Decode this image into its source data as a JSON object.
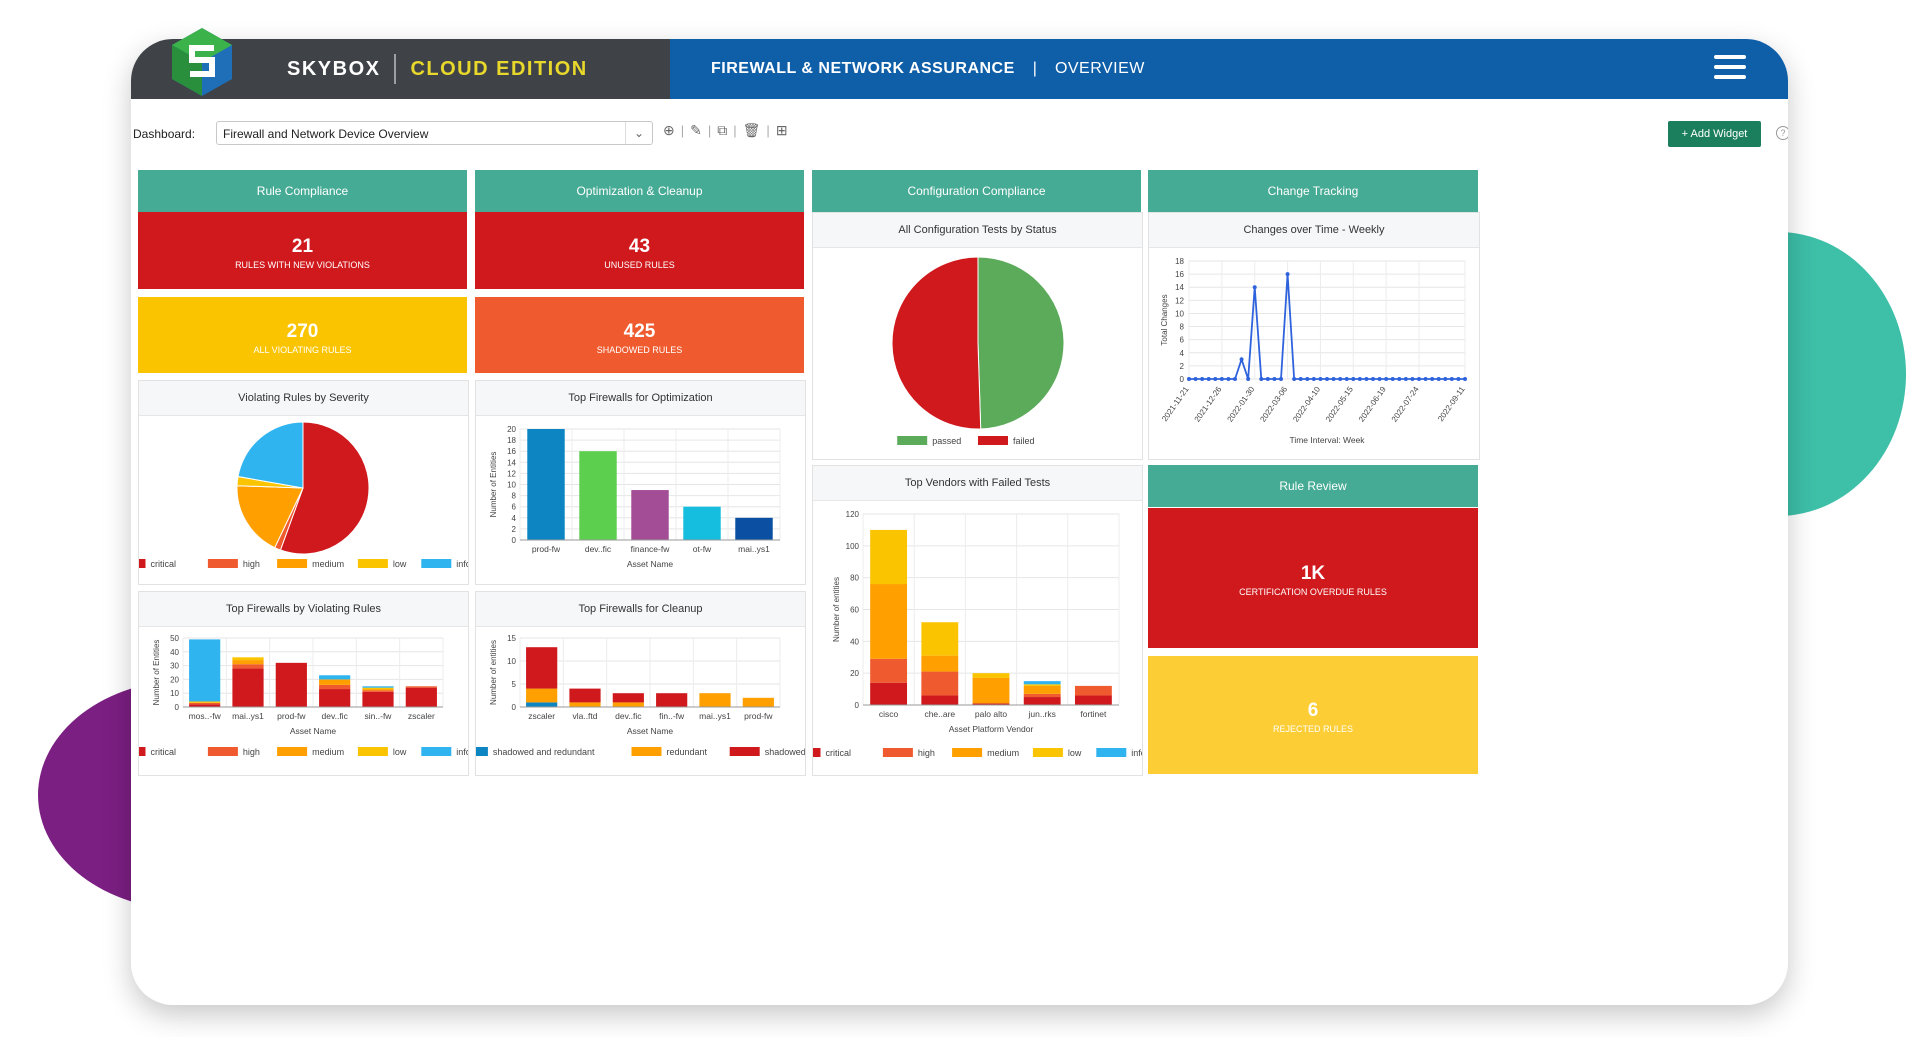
{
  "header": {
    "brand_name": "SKYBOX",
    "brand_edition": "CLOUD EDITION",
    "title": "FIREWALL & NETWORK ASSURANCE",
    "separator": "|",
    "subtitle": "OVERVIEW"
  },
  "toolbar": {
    "dashboard_label": "Dashboard:",
    "dashboard_value": "Firewall and Network Device Overview",
    "add_widget_label": "+ Add Widget"
  },
  "colors": {
    "critical": "#d0191d",
    "high": "#ef5b2f",
    "medium": "#ffa000",
    "low": "#fbc400",
    "info": "#30b4f0",
    "teal_header": "#46ab95",
    "nav_blue": "#0e5ea8"
  },
  "sections": {
    "rule_compliance": "Rule Compliance",
    "optimization": "Optimization & Cleanup",
    "config_compliance": "Configuration Compliance",
    "change_tracking": "Change Tracking",
    "rule_review": "Rule Review"
  },
  "kpis": {
    "new_violations": {
      "value": "21",
      "label": "RULES WITH NEW VIOLATIONS"
    },
    "all_violating": {
      "value": "270",
      "label": "ALL VIOLATING RULES"
    },
    "unused": {
      "value": "43",
      "label": "UNUSED RULES"
    },
    "shadowed": {
      "value": "425",
      "label": "SHADOWED RULES"
    },
    "cert_overdue": {
      "value": "1K",
      "label": "CERTIFICATION OVERDUE RULES"
    },
    "rejected": {
      "value": "6",
      "label": "REJECTED RULES"
    }
  },
  "panels": {
    "violating_by_severity": "Violating Rules by Severity",
    "top_fw_optimization": "Top Firewalls for Optimization",
    "top_fw_violating": "Top Firewalls by Violating Rules",
    "top_fw_cleanup": "Top Firewalls for Cleanup",
    "config_tests_status": "All Configuration Tests by Status",
    "top_vendors_failed": "Top Vendors with Failed Tests",
    "changes_weekly": "Changes over Time - Weekly"
  },
  "chart_data": [
    {
      "id": "severity_pie",
      "type": "pie",
      "title": "Violating Rules by Severity",
      "labels": [
        "critical",
        "high",
        "medium",
        "low",
        "info"
      ],
      "values": [
        150,
        4,
        50,
        6,
        60
      ]
    },
    {
      "id": "optimization_bar",
      "type": "bar",
      "title": "Top Firewalls for Optimization",
      "categories": [
        "prod-fw",
        "dev..fic",
        "finance-fw",
        "ot-fw",
        "mai..ys1"
      ],
      "values": [
        20,
        16,
        9,
        6,
        4
      ],
      "colors": [
        "#0d85c3",
        "#5ccf4e",
        "#a44d97",
        "#15bede",
        "#0a4fa2"
      ],
      "xlabel": "Asset Name",
      "ylabel": "Number of Entities",
      "ylim": [
        0,
        20
      ],
      "yticks": [
        0,
        2,
        4,
        6,
        8,
        10,
        12,
        14,
        16,
        18,
        20
      ]
    },
    {
      "id": "violating_stacked",
      "type": "bar",
      "title": "Top Firewalls by Violating Rules",
      "categories": [
        "mos..-fw",
        "mai..ys1",
        "prod-fw",
        "dev..fic",
        "sin..-fw",
        "zscaler"
      ],
      "series": [
        {
          "name": "critical",
          "values": [
            2,
            28,
            32,
            13,
            11,
            14
          ]
        },
        {
          "name": "high",
          "values": [
            1,
            3,
            0,
            3,
            1,
            1
          ]
        },
        {
          "name": "medium",
          "values": [
            0,
            3,
            0,
            4,
            1,
            0
          ]
        },
        {
          "name": "low",
          "values": [
            1,
            2,
            0,
            0,
            1,
            0
          ]
        },
        {
          "name": "info",
          "values": [
            45,
            0,
            0,
            3,
            1,
            0
          ]
        }
      ],
      "xlabel": "Asset Name",
      "ylabel": "Number of Entities",
      "ylim": [
        0,
        50
      ],
      "yticks": [
        0,
        10,
        20,
        30,
        40,
        50
      ]
    },
    {
      "id": "cleanup_stacked",
      "type": "bar",
      "title": "Top Firewalls for Cleanup",
      "categories": [
        "zscaler",
        "vla..ftd",
        "dev..fic",
        "fin..-fw",
        "mai..ys1",
        "prod-fw"
      ],
      "series": [
        {
          "name": "shadowed and redundant",
          "values": [
            1,
            0,
            0,
            0,
            0,
            0
          ]
        },
        {
          "name": "redundant",
          "values": [
            3,
            1,
            1,
            0,
            3,
            2
          ]
        },
        {
          "name": "shadowed",
          "values": [
            9,
            3,
            2,
            3,
            0,
            0
          ]
        }
      ],
      "xlabel": "Asset Name",
      "ylabel": "Number of entities",
      "ylim": [
        0,
        15
      ],
      "yticks": [
        0,
        5,
        10,
        15
      ]
    },
    {
      "id": "config_pie",
      "type": "pie",
      "title": "All Configuration Tests by Status",
      "labels": [
        "passed",
        "failed"
      ],
      "values": [
        49.5,
        50.5
      ],
      "colors": [
        "#5cab5b",
        "#d0191d"
      ]
    },
    {
      "id": "vendors_stacked",
      "type": "bar",
      "title": "Top Vendors with Failed Tests",
      "categories": [
        "cisco",
        "che..are",
        "palo alto",
        "jun..rks",
        "fortinet"
      ],
      "series": [
        {
          "name": "critical",
          "values": [
            14,
            6,
            1,
            5,
            6
          ]
        },
        {
          "name": "high",
          "values": [
            15,
            15,
            0,
            2,
            6
          ]
        },
        {
          "name": "medium",
          "values": [
            47,
            10,
            16,
            5,
            0
          ]
        },
        {
          "name": "low",
          "values": [
            34,
            21,
            3,
            1,
            0
          ]
        },
        {
          "name": "info",
          "values": [
            0,
            0,
            0,
            2,
            0
          ]
        }
      ],
      "xlabel": "Asset Platform Vendor",
      "ylabel": "Number of entities",
      "ylim": [
        0,
        120
      ],
      "yticks": [
        0,
        20,
        40,
        60,
        80,
        100,
        120
      ]
    },
    {
      "id": "changes_line",
      "type": "line",
      "title": "Changes over Time - Weekly",
      "x": [
        "2021-11-21",
        "2021-11-28",
        "2021-12-05",
        "2021-12-12",
        "2021-12-19",
        "2021-12-26",
        "2022-01-02",
        "2022-01-09",
        "2022-01-16",
        "2022-01-23",
        "2022-01-30",
        "2022-02-06",
        "2022-02-13",
        "2022-02-20",
        "2022-02-27",
        "2022-03-06",
        "2022-03-13",
        "2022-03-20",
        "2022-03-27",
        "2022-04-03",
        "2022-04-10",
        "2022-04-17",
        "2022-04-24",
        "2022-05-01",
        "2022-05-08",
        "2022-05-15",
        "2022-05-22",
        "2022-05-29",
        "2022-06-05",
        "2022-06-12",
        "2022-06-19",
        "2022-06-26",
        "2022-07-03",
        "2022-07-10",
        "2022-07-17",
        "2022-07-24",
        "2022-07-31",
        "2022-08-07",
        "2022-08-14",
        "2022-08-21",
        "2022-08-28",
        "2022-09-04",
        "2022-09-11"
      ],
      "values": [
        0,
        0,
        0,
        0,
        0,
        0,
        0,
        0,
        3,
        0,
        14,
        0,
        0,
        0,
        0,
        16,
        0,
        0,
        0,
        0,
        0,
        0,
        0,
        0,
        0,
        0,
        0,
        0,
        0,
        0,
        0,
        0,
        0,
        0,
        0,
        0,
        0,
        0,
        0,
        0,
        0,
        0,
        0
      ],
      "xticks": [
        "2021-11-21",
        "2021-12-26",
        "2022-01-30",
        "2022-03-06",
        "2022-04-10",
        "2022-05-15",
        "2022-06-19",
        "2022-07-24",
        "2022-09-11"
      ],
      "xlabel": "Time Interval: Week",
      "ylabel": "Total Changes",
      "ylim": [
        0,
        18
      ],
      "yticks": [
        0,
        2,
        4,
        6,
        8,
        10,
        12,
        14,
        16,
        18
      ]
    }
  ]
}
